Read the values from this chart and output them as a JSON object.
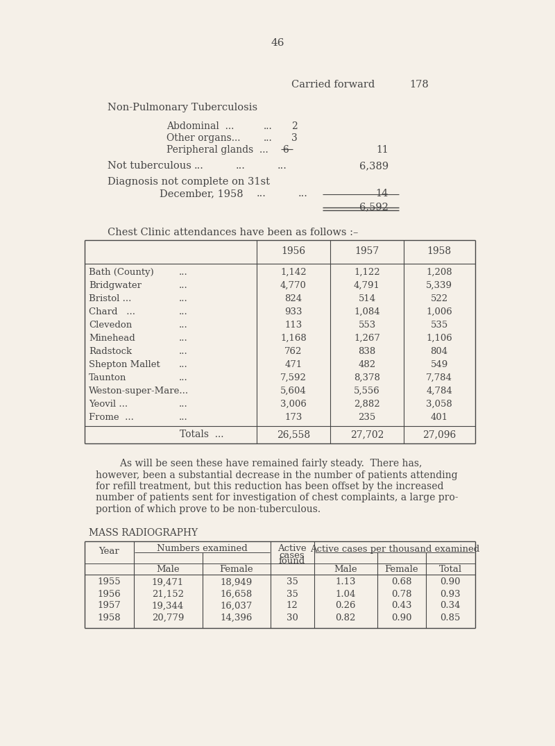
{
  "bg_color": "#f5f0e8",
  "text_color": "#444444",
  "page_number": "46",
  "chest_clinic_rows": [
    [
      "Bath (County)",
      "...",
      "1,142",
      "1,122",
      "1,208"
    ],
    [
      "Bridgwater",
      "...",
      "4,770",
      "4,791",
      "5,339"
    ],
    [
      "Bristol ...",
      "...",
      "824",
      "514",
      "522"
    ],
    [
      "Chard   ...",
      "...",
      "933",
      "1,084",
      "1,006"
    ],
    [
      "Clevedon",
      "...",
      "113",
      "553",
      "535"
    ],
    [
      "Minehead",
      "...",
      "1,168",
      "1,267",
      "1,106"
    ],
    [
      "Radstock",
      "...",
      "762",
      "838",
      "804"
    ],
    [
      "Shepton Mallet",
      "...",
      "471",
      "482",
      "549"
    ],
    [
      "Taunton",
      "...",
      "7,592",
      "8,378",
      "7,784"
    ],
    [
      "Weston-super-Mare...",
      "",
      "5,604",
      "5,556",
      "4,784"
    ],
    [
      "Yeovil ...",
      "...",
      "3,006",
      "2,882",
      "3,058"
    ],
    [
      "Frome  ...",
      "...",
      "173",
      "235",
      "401"
    ]
  ],
  "mass_radio_rows": [
    [
      "1955",
      "19,471",
      "18,949",
      "35",
      "1.13",
      "0.68",
      "0.90"
    ],
    [
      "1956",
      "21,152",
      "16,658",
      "35",
      "1.04",
      "0.78",
      "0.93"
    ],
    [
      "1957",
      "19,344",
      "16,037",
      "12",
      "0.26",
      "0.43",
      "0.34"
    ],
    [
      "1958",
      "20,779",
      "14,396",
      "30",
      "0.82",
      "0.90",
      "0.85"
    ]
  ],
  "paragraph_lines": [
    "        As will be seen these have remained fairly steady.  There has,",
    "however, been a substantial decrease in the number of patients attending",
    "for refill treatment, but this reduction has been offset by the increased",
    "number of patients sent for investigation of chest complaints, a large pro-",
    "portion of which prove to be non-tuberculous."
  ]
}
